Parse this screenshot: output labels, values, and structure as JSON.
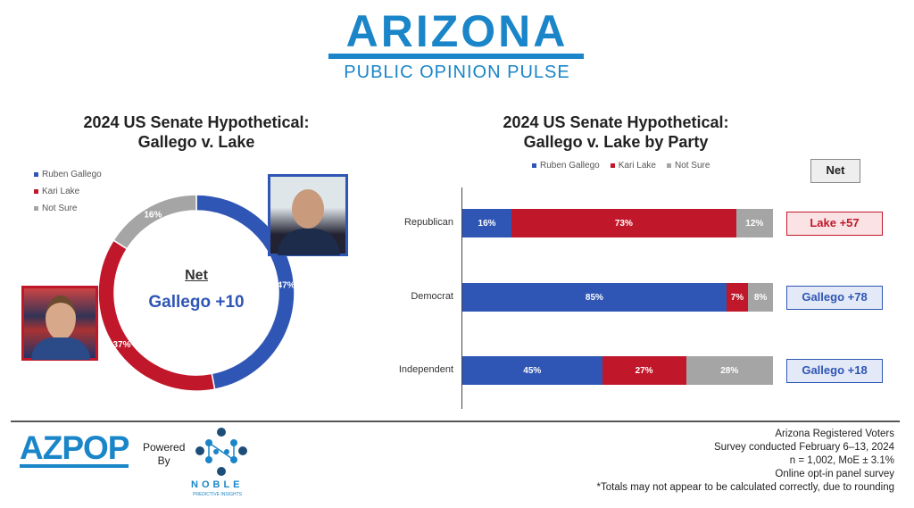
{
  "header": {
    "title": "ARIZONA",
    "subtitle": "PUBLIC OPINION PULSE"
  },
  "colors": {
    "gallego": "#2f56b5",
    "lake": "#c0182a",
    "not_sure": "#a5a5a5",
    "brand": "#1a85c8"
  },
  "chart_data": [
    {
      "type": "pie",
      "title": "2024 US Senate Hypothetical: Gallego v. Lake",
      "title_lines": [
        "2024 US Senate Hypothetical:",
        "Gallego v. Lake"
      ],
      "legend": [
        "Ruben Gallego",
        "Kari Lake",
        "Not Sure"
      ],
      "slices": [
        {
          "label": "Ruben Gallego",
          "value": 47,
          "text": "47%"
        },
        {
          "label": "Kari Lake",
          "value": 37,
          "text": "37%"
        },
        {
          "label": "Not Sure",
          "value": 16,
          "text": "16%"
        }
      ],
      "center": {
        "heading": "Net",
        "value": "Gallego +10"
      }
    },
    {
      "type": "bar",
      "orientation": "horizontal",
      "stacked": true,
      "title": "2024 US Senate Hypothetical: Gallego v. Lake by Party",
      "title_lines": [
        "2024 US Senate Hypothetical:",
        "Gallego v. Lake by Party"
      ],
      "legend": [
        "Ruben Gallego",
        "Kari Lake",
        "Not Sure"
      ],
      "categories": [
        "Republican",
        "Democrat",
        "Independent"
      ],
      "series": [
        {
          "name": "Ruben Gallego",
          "values": [
            16,
            85,
            45
          ]
        },
        {
          "name": "Kari Lake",
          "values": [
            73,
            7,
            27
          ]
        },
        {
          "name": "Not Sure",
          "values": [
            12,
            8,
            28
          ]
        }
      ],
      "net_header": "Net",
      "net": [
        {
          "text": "Lake +57",
          "party": "lake"
        },
        {
          "text": "Gallego +78",
          "party": "gallego"
        },
        {
          "text": "Gallego +18",
          "party": "gallego"
        }
      ]
    }
  ],
  "footer": {
    "logo": "AZPOP",
    "powered": "Powered",
    "by": "By",
    "noble": "NOBLE",
    "noble_sub": "PREDICTIVE INSIGHTS",
    "notes": [
      "Arizona Registered Voters",
      "Survey conducted February 6–13, 2024",
      "n = 1,002, MoE ± 3.1%",
      "Online opt-in panel survey",
      "*Totals may not appear to be calculated correctly, due to rounding"
    ]
  }
}
